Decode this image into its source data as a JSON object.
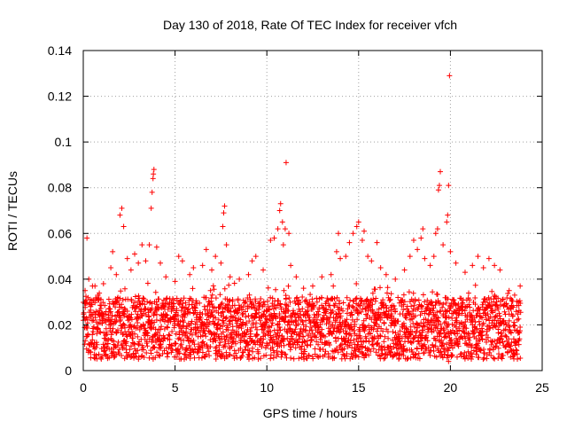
{
  "chart_data": {
    "type": "scatter",
    "title": "Day 130 of 2018, Rate Of TEC Index for receiver vfch",
    "xlabel": "GPS time / hours",
    "ylabel": "ROTI / TECUs",
    "xlim": [
      0,
      25
    ],
    "ylim": [
      0,
      0.14
    ],
    "xticks": [
      0,
      5,
      10,
      15,
      20,
      25
    ],
    "xtick_labels": [
      "0",
      "5",
      "10",
      "15",
      "20",
      "25"
    ],
    "yticks": [
      0,
      0.02,
      0.04,
      0.06,
      0.08,
      0.1,
      0.12,
      0.14
    ],
    "ytick_labels": [
      "0",
      "0.02",
      "0.04",
      "0.06",
      "0.08",
      "0.1",
      "0.12",
      "0.14"
    ],
    "grid": true,
    "marker": "+",
    "series": [
      {
        "name": "ROTI",
        "color": "#ff0000",
        "points": [
          [
            0.0,
            0.022
          ],
          [
            0.2,
            0.015
          ],
          [
            0.4,
            0.028
          ],
          [
            0.6,
            0.012
          ],
          [
            0.8,
            0.018
          ],
          [
            1.0,
            0.025
          ],
          [
            1.2,
            0.014
          ],
          [
            1.4,
            0.02
          ],
          [
            1.6,
            0.03
          ],
          [
            1.8,
            0.017
          ],
          [
            2.0,
            0.024
          ],
          [
            2.2,
            0.013
          ],
          [
            2.4,
            0.026
          ],
          [
            2.6,
            0.019
          ],
          [
            2.8,
            0.016
          ],
          [
            3.0,
            0.023
          ],
          [
            3.2,
            0.011
          ],
          [
            3.4,
            0.027
          ],
          [
            3.6,
            0.021
          ],
          [
            3.8,
            0.015
          ],
          [
            4.0,
            0.029
          ],
          [
            4.2,
            0.018
          ],
          [
            4.4,
            0.014
          ],
          [
            4.6,
            0.022
          ],
          [
            4.8,
            0.026
          ],
          [
            5.0,
            0.012
          ],
          [
            5.2,
            0.02
          ],
          [
            5.4,
            0.024
          ],
          [
            5.6,
            0.017
          ],
          [
            5.8,
            0.013
          ],
          [
            6.0,
            0.025
          ],
          [
            6.2,
            0.019
          ],
          [
            6.4,
            0.015
          ],
          [
            6.6,
            0.028
          ],
          [
            6.8,
            0.021
          ],
          [
            7.0,
            0.016
          ],
          [
            7.2,
            0.023
          ],
          [
            7.4,
            0.011
          ],
          [
            7.6,
            0.027
          ],
          [
            7.8,
            0.018
          ],
          [
            8.0,
            0.022
          ],
          [
            8.2,
            0.014
          ],
          [
            8.4,
            0.026
          ],
          [
            8.6,
            0.02
          ],
          [
            8.8,
            0.016
          ],
          [
            9.0,
            0.024
          ],
          [
            9.2,
            0.013
          ],
          [
            9.4,
            0.019
          ],
          [
            9.6,
            0.028
          ],
          [
            9.8,
            0.015
          ],
          [
            10.0,
            0.021
          ],
          [
            10.2,
            0.017
          ],
          [
            10.4,
            0.025
          ],
          [
            10.6,
            0.012
          ],
          [
            10.8,
            0.023
          ],
          [
            11.0,
            0.029
          ],
          [
            11.2,
            0.018
          ],
          [
            11.4,
            0.014
          ],
          [
            11.6,
            0.022
          ],
          [
            11.8,
            0.016
          ],
          [
            12.0,
            0.02
          ],
          [
            12.2,
            0.013
          ],
          [
            12.4,
            0.019
          ],
          [
            12.6,
            0.015
          ],
          [
            12.8,
            0.024
          ],
          [
            13.0,
            0.018
          ],
          [
            13.2,
            0.012
          ],
          [
            13.4,
            0.021
          ],
          [
            13.6,
            0.026
          ],
          [
            13.8,
            0.017
          ],
          [
            14.0,
            0.023
          ],
          [
            14.2,
            0.014
          ],
          [
            14.4,
            0.027
          ],
          [
            14.6,
            0.019
          ],
          [
            14.8,
            0.016
          ],
          [
            15.0,
            0.025
          ],
          [
            15.2,
            0.02
          ],
          [
            15.4,
            0.013
          ],
          [
            15.6,
            0.028
          ],
          [
            15.8,
            0.018
          ],
          [
            16.0,
            0.022
          ],
          [
            16.2,
            0.015
          ],
          [
            16.4,
            0.024
          ],
          [
            16.6,
            0.017
          ],
          [
            16.8,
            0.021
          ],
          [
            17.0,
            0.026
          ],
          [
            17.2,
            0.014
          ],
          [
            17.4,
            0.019
          ],
          [
            17.6,
            0.023
          ],
          [
            17.8,
            0.016
          ],
          [
            18.0,
            0.027
          ],
          [
            18.2,
            0.02
          ],
          [
            18.4,
            0.013
          ],
          [
            18.6,
            0.025
          ],
          [
            18.8,
            0.018
          ],
          [
            19.0,
            0.022
          ],
          [
            19.2,
            0.03
          ],
          [
            19.4,
            0.015
          ],
          [
            19.6,
            0.024
          ],
          [
            19.8,
            0.019
          ],
          [
            20.0,
            0.017
          ],
          [
            20.2,
            0.026
          ],
          [
            20.4,
            0.012
          ],
          [
            20.6,
            0.021
          ],
          [
            20.8,
            0.028
          ],
          [
            21.0,
            0.016
          ],
          [
            21.2,
            0.023
          ],
          [
            21.4,
            0.014
          ],
          [
            21.6,
            0.02
          ],
          [
            21.8,
            0.025
          ],
          [
            22.0,
            0.018
          ],
          [
            22.2,
            0.013
          ],
          [
            22.4,
            0.022
          ],
          [
            22.6,
            0.027
          ],
          [
            22.8,
            0.015
          ],
          [
            23.0,
            0.021
          ],
          [
            23.2,
            0.017
          ],
          [
            23.4,
            0.024
          ],
          [
            23.6,
            0.012
          ],
          [
            23.8,
            0.019
          ],
          [
            0.1,
            0.035
          ],
          [
            0.2,
            0.058
          ],
          [
            0.3,
            0.04
          ],
          [
            0.5,
            0.037
          ],
          [
            0.8,
            0.033
          ],
          [
            1.1,
            0.038
          ],
          [
            1.5,
            0.045
          ],
          [
            1.6,
            0.052
          ],
          [
            1.8,
            0.042
          ],
          [
            2.0,
            0.068
          ],
          [
            2.1,
            0.071
          ],
          [
            2.2,
            0.063
          ],
          [
            2.4,
            0.049
          ],
          [
            2.6,
            0.044
          ],
          [
            2.8,
            0.051
          ],
          [
            3.0,
            0.047
          ],
          [
            3.2,
            0.055
          ],
          [
            3.4,
            0.048
          ],
          [
            3.6,
            0.055
          ],
          [
            3.7,
            0.071
          ],
          [
            3.75,
            0.078
          ],
          [
            3.8,
            0.084
          ],
          [
            3.82,
            0.086
          ],
          [
            3.85,
            0.088
          ],
          [
            4.0,
            0.054
          ],
          [
            4.2,
            0.047
          ],
          [
            4.5,
            0.041
          ],
          [
            5.0,
            0.039
          ],
          [
            5.2,
            0.05
          ],
          [
            5.4,
            0.048
          ],
          [
            5.8,
            0.042
          ],
          [
            6.0,
            0.045
          ],
          [
            6.5,
            0.046
          ],
          [
            6.7,
            0.053
          ],
          [
            7.0,
            0.044
          ],
          [
            7.2,
            0.05
          ],
          [
            7.5,
            0.047
          ],
          [
            7.6,
            0.063
          ],
          [
            7.65,
            0.069
          ],
          [
            7.7,
            0.072
          ],
          [
            7.8,
            0.055
          ],
          [
            8.0,
            0.041
          ],
          [
            8.5,
            0.04
          ],
          [
            9.0,
            0.042
          ],
          [
            9.2,
            0.048
          ],
          [
            9.4,
            0.05
          ],
          [
            9.8,
            0.044
          ],
          [
            10.2,
            0.057
          ],
          [
            10.4,
            0.058
          ],
          [
            10.6,
            0.062
          ],
          [
            10.7,
            0.07
          ],
          [
            10.75,
            0.073
          ],
          [
            10.85,
            0.065
          ],
          [
            10.9,
            0.055
          ],
          [
            11.0,
            0.062
          ],
          [
            11.05,
            0.091
          ],
          [
            11.2,
            0.06
          ],
          [
            11.3,
            0.046
          ],
          [
            11.6,
            0.041
          ],
          [
            12.0,
            0.036
          ],
          [
            12.5,
            0.037
          ],
          [
            13.0,
            0.041
          ],
          [
            13.5,
            0.042
          ],
          [
            13.8,
            0.052
          ],
          [
            13.9,
            0.06
          ],
          [
            14.0,
            0.049
          ],
          [
            14.3,
            0.05
          ],
          [
            14.5,
            0.056
          ],
          [
            14.7,
            0.06
          ],
          [
            14.9,
            0.063
          ],
          [
            15.0,
            0.065
          ],
          [
            15.2,
            0.057
          ],
          [
            15.3,
            0.061
          ],
          [
            15.5,
            0.05
          ],
          [
            15.7,
            0.048
          ],
          [
            16.0,
            0.056
          ],
          [
            16.2,
            0.045
          ],
          [
            16.5,
            0.042
          ],
          [
            17.0,
            0.04
          ],
          [
            17.5,
            0.044
          ],
          [
            17.8,
            0.05
          ],
          [
            18.0,
            0.057
          ],
          [
            18.2,
            0.053
          ],
          [
            18.4,
            0.058
          ],
          [
            18.5,
            0.062
          ],
          [
            18.6,
            0.049
          ],
          [
            18.9,
            0.046
          ],
          [
            19.1,
            0.05
          ],
          [
            19.2,
            0.06
          ],
          [
            19.3,
            0.062
          ],
          [
            19.35,
            0.079
          ],
          [
            19.4,
            0.081
          ],
          [
            19.45,
            0.087
          ],
          [
            19.6,
            0.055
          ],
          [
            19.8,
            0.065
          ],
          [
            19.85,
            0.068
          ],
          [
            19.9,
            0.081
          ],
          [
            19.95,
            0.129
          ],
          [
            20.0,
            0.052
          ],
          [
            20.3,
            0.047
          ],
          [
            20.8,
            0.043
          ],
          [
            21.2,
            0.046
          ],
          [
            21.5,
            0.05
          ],
          [
            21.8,
            0.045
          ],
          [
            22.1,
            0.049
          ],
          [
            22.4,
            0.046
          ],
          [
            22.7,
            0.044
          ],
          [
            23.2,
            0.035
          ],
          [
            23.5,
            0.033
          ],
          [
            23.8,
            0.037
          ],
          [
            5.5,
            0.005
          ],
          [
            12.0,
            0.006
          ],
          [
            19.9,
            0.004
          ],
          [
            8.0,
            0.007
          ],
          [
            15.0,
            0.006
          ],
          [
            2.5,
            0.007
          ],
          [
            18.0,
            0.006
          ],
          [
            22.0,
            0.007
          ]
        ]
      }
    ]
  }
}
